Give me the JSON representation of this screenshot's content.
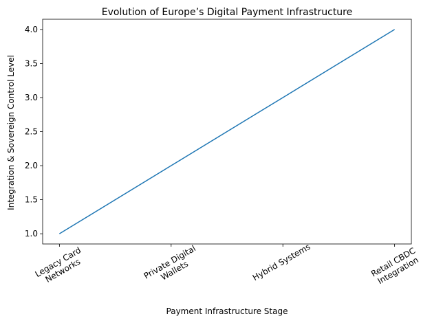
{
  "chart_data": {
    "type": "line",
    "title": "Evolution of Europe’s Digital Payment Infrastructure",
    "x_label": "Payment Infrastructure Stage",
    "y_label": "Integration & Sovereign Control Level",
    "categories": [
      "Legacy Card\nNetworks",
      "Private Digital\nWallets",
      "Hybrid Systems",
      "Retail CBDC\nIntegration"
    ],
    "values": [
      1,
      2,
      3,
      4
    ],
    "color": "#1f77b4",
    "ylim": [
      0.85,
      4.15
    ],
    "yticks": [
      {
        "value": 1,
        "label": "1.0"
      },
      1.5,
      {
        "value": 2,
        "label": "2.0"
      },
      2.5,
      {
        "value": 3,
        "label": "3.0"
      },
      3.5,
      {
        "value": 4,
        "label": "4.0"
      }
    ],
    "grid": false
  }
}
